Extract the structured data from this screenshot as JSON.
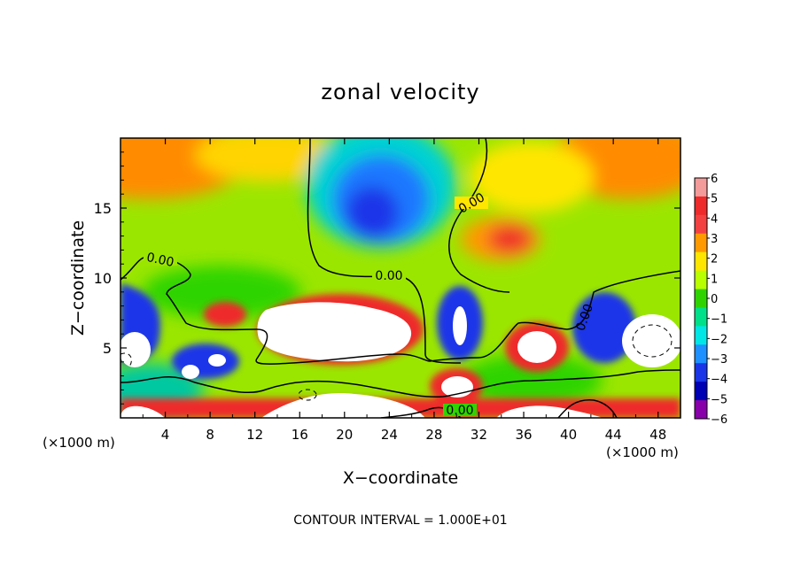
{
  "chart_data": {
    "type": "heatmap",
    "title": "zonal velocity",
    "xlabel": "X−coordinate",
    "ylabel": "Z−coordinate",
    "x_unit": "(×1000 m)",
    "x_unit_right": "(×1000 m)",
    "footer": "CONTOUR INTERVAL = 1.000E+01",
    "xlim": [
      0,
      50
    ],
    "ylim": [
      0,
      20
    ],
    "x_ticks": [
      4,
      8,
      12,
      16,
      20,
      24,
      28,
      32,
      36,
      40,
      44,
      48
    ],
    "y_ticks": [
      5,
      10,
      15
    ],
    "colorbar": {
      "ticks": [
        6,
        5,
        4,
        3,
        2,
        1,
        0,
        -1,
        -2,
        -3,
        -4,
        -5,
        -6
      ],
      "labels": [
        "6",
        "5",
        "4",
        "3",
        "2",
        "1",
        "0",
        "−1",
        "−2",
        "−3",
        "−4",
        "−5",
        "−6"
      ],
      "colors": [
        "#f39a9a",
        "#ee2a2a",
        "#f34141",
        "#ff9a00",
        "#ffe600",
        "#b9ff00",
        "#2fd400",
        "#00e08a",
        "#00e6e6",
        "#1e90ff",
        "#1a35e8",
        "#0000b4",
        "#8800aa"
      ],
      "out_of_range_color": "#ffffff"
    },
    "contour_labels": [
      "0.00",
      "0.00",
      "0.00",
      "0.00",
      "0.00"
    ]
  }
}
